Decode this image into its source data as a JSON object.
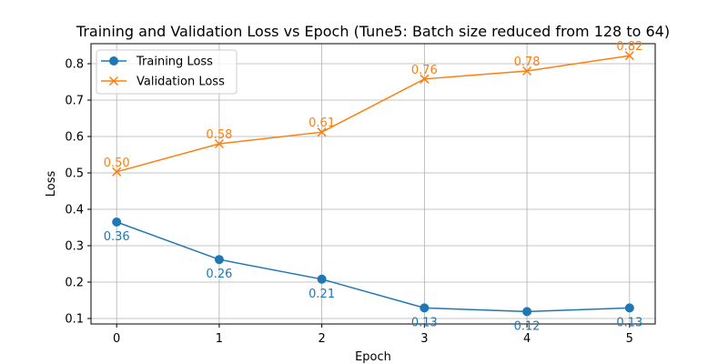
{
  "chart_data": {
    "type": "line",
    "title": "Training and Validation Loss vs Epoch (Tune5: Batch size reduced from 128 to 64)",
    "xlabel": "Epoch",
    "ylabel": "Loss",
    "x": [
      0,
      1,
      2,
      3,
      4,
      5
    ],
    "xlim": [
      -0.25,
      5.25
    ],
    "ylim": [
      0.085,
      0.855
    ],
    "xticks": [
      0,
      1,
      2,
      3,
      4,
      5
    ],
    "yticks": [
      0.1,
      0.2,
      0.3,
      0.4,
      0.5,
      0.6,
      0.7,
      0.8
    ],
    "ytick_labels": [
      "0.1",
      "0.2",
      "0.3",
      "0.4",
      "0.5",
      "0.6",
      "0.7",
      "0.8"
    ],
    "grid": true,
    "legend_position": "top-left",
    "series": [
      {
        "name": "Training Loss",
        "color": "#1f77b4",
        "marker": "circle",
        "label_position": "below",
        "values": [
          0.365,
          0.262,
          0.208,
          0.129,
          0.119,
          0.129
        ],
        "labels": [
          "0.36",
          "0.26",
          "0.21",
          "0.13",
          "0.12",
          "0.13"
        ]
      },
      {
        "name": "Validation Loss",
        "color": "#ff7f0e",
        "marker": "x",
        "label_position": "above",
        "values": [
          0.503,
          0.58,
          0.612,
          0.758,
          0.78,
          0.822
        ],
        "labels": [
          "0.50",
          "0.58",
          "0.61",
          "0.76",
          "0.78",
          "0.82"
        ]
      }
    ]
  }
}
